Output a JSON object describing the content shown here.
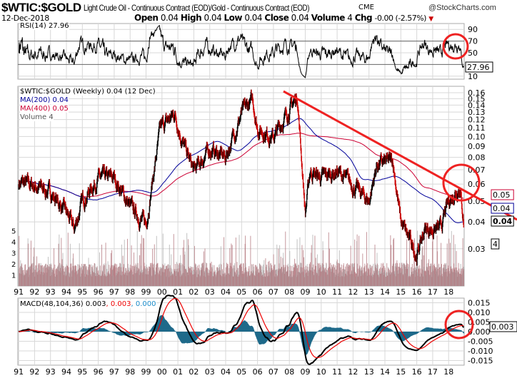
{
  "header": {
    "symbol": "$WTIC:$GOLD",
    "description": "Light Crude Oil - Continuous Contract (EOD)/Gold - Continuous Contract (EOD)",
    "exchange": "CME",
    "copyright": "@StockCharts.com",
    "date": "12-Dec-2018",
    "open_label": "Open",
    "open": "0.04",
    "high_label": "High",
    "high": "0.04",
    "low_label": "Low",
    "low": "0.04",
    "close_label": "Close",
    "close": "0.04",
    "volume_label": "Volume",
    "volume": "4",
    "chg_label": "Chg",
    "chg": "-0.00 (-2.57%)"
  },
  "colors": {
    "price": "#000000",
    "down": "#cc0000",
    "ma200": "#000099",
    "ma400": "#cc0033",
    "trendline": "#ee2222",
    "macd_hist": "#1f6a8a",
    "volume": "#b07078",
    "grid": "#d8d8d8"
  },
  "chart_data": [
    {
      "type": "line",
      "panel": "RSI",
      "legend": "RSI(14) 27.96",
      "y_ticks": [
        "90",
        "70",
        "50",
        "10"
      ],
      "ylim": [
        0,
        100
      ],
      "last_value_label": "27.96"
    },
    {
      "type": "line",
      "panel": "price",
      "scale": "log",
      "legend": "$WTIC:$GOLD (Weekly) 0.04 (12 Dec)",
      "ma200_legend": "MA(200) 0.04",
      "ma400_legend": "MA(400) 0.05",
      "volume_legend": "Volume 4",
      "ylim": [
        0.027,
        0.165
      ],
      "y_ticks": [
        "0.16",
        "0.15",
        "0.14",
        "0.13",
        "0.12",
        "0.11",
        "0.10",
        "0.09",
        "0.08",
        "0.07",
        "0.06",
        "0.05",
        "0.04",
        "0.03"
      ],
      "volume_ticks": [
        "5",
        "4",
        "3",
        "2",
        "1"
      ],
      "last_labels": {
        "price": "0.04",
        "ma200": "0.04",
        "ma400": "0.05",
        "volume": "4"
      },
      "anchors": {
        "x": [
          1991,
          1992,
          1993,
          1994,
          1994.5,
          1995,
          1996,
          1997,
          1998,
          1999,
          1999.9,
          2000.8,
          2001.3,
          2002,
          2003,
          2004,
          2005,
          2005.7,
          2006,
          2007,
          2008.5,
          2009,
          2009.3,
          2010,
          2011,
          2012,
          2013,
          2013.5,
          2014.5,
          2015,
          2016,
          2016.5,
          2017,
          2017.5,
          2018,
          2018.7,
          2018.95
        ],
        "y": [
          0.061,
          0.059,
          0.055,
          0.044,
          0.037,
          0.05,
          0.064,
          0.064,
          0.047,
          0.039,
          0.109,
          0.128,
          0.094,
          0.069,
          0.087,
          0.08,
          0.128,
          0.148,
          0.109,
          0.099,
          0.154,
          0.044,
          0.069,
          0.064,
          0.069,
          0.059,
          0.05,
          0.074,
          0.077,
          0.04,
          0.028,
          0.037,
          0.037,
          0.037,
          0.05,
          0.059,
          0.04
        ]
      },
      "annotations": [
        "downward trendline",
        "circle at latest price"
      ]
    },
    {
      "type": "line",
      "panel": "MACD",
      "legend": "MACD(48,104,36)",
      "macd": "0.003",
      "signal": "0.003",
      "histogram": "0.000",
      "ylim": [
        -0.017,
        0.017
      ],
      "y_ticks": [
        "0.015",
        "0.010",
        "0.005",
        "0.000",
        "-0.005",
        "-0.010",
        "-0.015"
      ],
      "last_label": "0.003"
    }
  ],
  "x_ticks": [
    "91",
    "92",
    "93",
    "94",
    "95",
    "96",
    "97",
    "98",
    "99",
    "00",
    "01",
    "02",
    "03",
    "04",
    "05",
    "06",
    "07",
    "08",
    "09",
    "10",
    "11",
    "12",
    "13",
    "14",
    "15",
    "16",
    "17",
    "18"
  ]
}
